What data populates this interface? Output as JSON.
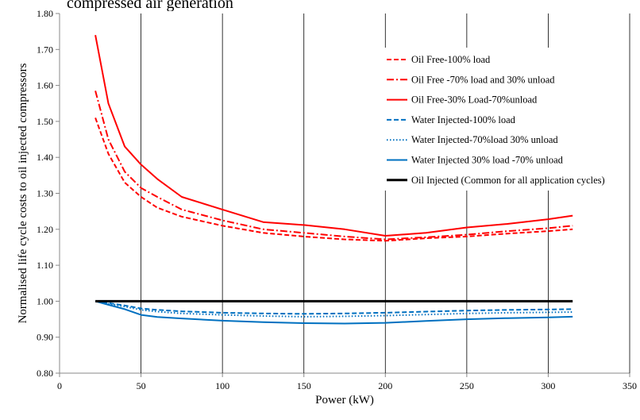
{
  "chart_data": {
    "type": "line",
    "title": "",
    "xlabel": "Power (kW)",
    "ylabel": "Normalised life cycle costs to oil injected compressors",
    "xlim": [
      0,
      350
    ],
    "ylim": [
      0.8,
      1.8
    ],
    "x_ticks": [
      "0",
      "50",
      "100",
      "150",
      "200",
      "250",
      "300",
      "350"
    ],
    "y_ticks": [
      "0.80",
      "0.90",
      "1.00",
      "1.10",
      "1.20",
      "1.30",
      "1.40",
      "1.50",
      "1.60",
      "1.70",
      "1.80"
    ],
    "grid": "vertical",
    "legend_position": "right",
    "series": [
      {
        "name": "Oil Free-100% load",
        "color": "#ff0000",
        "dash": "dashed",
        "x": [
          22,
          30,
          40,
          50,
          60,
          75,
          100,
          125,
          150,
          175,
          200,
          225,
          250,
          275,
          300,
          315
        ],
        "y": [
          1.51,
          1.41,
          1.33,
          1.29,
          1.26,
          1.235,
          1.21,
          1.19,
          1.18,
          1.172,
          1.168,
          1.175,
          1.18,
          1.188,
          1.195,
          1.2
        ]
      },
      {
        "name": "Oil Free -70% load and 30% unload",
        "color": "#ff0000",
        "dash": "dashdot",
        "x": [
          22,
          30,
          40,
          50,
          60,
          75,
          100,
          125,
          150,
          175,
          200,
          225,
          250,
          275,
          300,
          315
        ],
        "y": [
          1.585,
          1.45,
          1.36,
          1.315,
          1.29,
          1.255,
          1.225,
          1.2,
          1.19,
          1.18,
          1.172,
          1.178,
          1.185,
          1.195,
          1.203,
          1.21
        ]
      },
      {
        "name": "Oil Free-30% Load-70%unload",
        "color": "#ff0000",
        "dash": "solid",
        "x": [
          22,
          30,
          40,
          50,
          60,
          75,
          100,
          125,
          150,
          175,
          200,
          225,
          250,
          275,
          300,
          315
        ],
        "y": [
          1.74,
          1.55,
          1.43,
          1.38,
          1.34,
          1.29,
          1.255,
          1.22,
          1.212,
          1.2,
          1.182,
          1.19,
          1.205,
          1.215,
          1.228,
          1.238
        ]
      },
      {
        "name": "Water Injected-100% load",
        "color": "#0070c0",
        "dash": "dashed",
        "x": [
          22,
          30,
          40,
          50,
          60,
          75,
          100,
          125,
          150,
          175,
          200,
          225,
          250,
          275,
          300,
          315
        ],
        "y": [
          1.0,
          0.995,
          0.988,
          0.98,
          0.976,
          0.972,
          0.968,
          0.966,
          0.965,
          0.966,
          0.968,
          0.971,
          0.974,
          0.976,
          0.977,
          0.978
        ]
      },
      {
        "name": "Water Injected-70%load 30% unload",
        "color": "#0070c0",
        "dash": "dotted",
        "x": [
          22,
          30,
          40,
          50,
          60,
          75,
          100,
          125,
          150,
          175,
          200,
          225,
          250,
          275,
          300,
          315
        ],
        "y": [
          1.0,
          0.993,
          0.985,
          0.976,
          0.971,
          0.966,
          0.962,
          0.959,
          0.957,
          0.958,
          0.96,
          0.963,
          0.966,
          0.968,
          0.969,
          0.97
        ]
      },
      {
        "name": "Water Injected 30% load -70% unload",
        "color": "#0070c0",
        "dash": "solid",
        "x": [
          22,
          30,
          40,
          50,
          60,
          75,
          100,
          125,
          150,
          175,
          200,
          225,
          250,
          275,
          300,
          315
        ],
        "y": [
          1.0,
          0.99,
          0.978,
          0.962,
          0.956,
          0.952,
          0.946,
          0.942,
          0.939,
          0.938,
          0.94,
          0.945,
          0.95,
          0.953,
          0.955,
          0.957
        ]
      },
      {
        "name": "Oil Injected (Common for all application cycles)",
        "color": "#000000",
        "dash": "solid",
        "x": [
          22,
          315
        ],
        "y": [
          1.0,
          1.0
        ]
      }
    ]
  },
  "top_caption_fragment": "compressed air generation"
}
